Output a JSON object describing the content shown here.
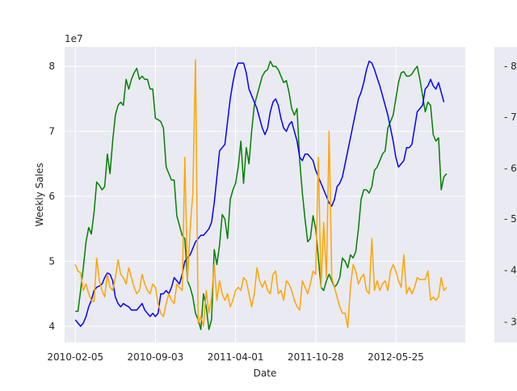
{
  "chart_data": {
    "type": "line",
    "title": "",
    "xlabel": "Date",
    "ylabel": "Weekly Sales",
    "offset_label": "1e7",
    "x_tick_labels": [
      "2010-02-05",
      "2010-09-03",
      "2011-04-01",
      "2011-10-28",
      "2012-05-25"
    ],
    "x_tick_weeks": [
      0,
      30,
      60,
      90,
      120
    ],
    "xlim_weeks": [
      -4,
      146
    ],
    "ylim": [
      3.75,
      8.3
    ],
    "y_ticks": [
      4,
      5,
      6,
      7,
      8
    ],
    "y_tick_labels": [
      "4",
      "5",
      "6",
      "7",
      "8"
    ],
    "twin_axis_tick_labels": [
      "- 8",
      "- 7",
      "- 6",
      "- 5",
      "- 4",
      "- 3"
    ],
    "twin_axis_tick_values": [
      8.0,
      7.22,
      6.43,
      5.65,
      4.86,
      4.07
    ],
    "grid": true,
    "legend": false,
    "x_step_weeks": 1,
    "series": [
      {
        "color": "#008000",
        "values": [
          4.23,
          4.23,
          4.55,
          4.9,
          5.3,
          5.52,
          5.42,
          5.75,
          6.22,
          6.17,
          6.1,
          6.15,
          6.65,
          6.35,
          6.85,
          7.25,
          7.4,
          7.45,
          7.4,
          7.8,
          7.65,
          7.8,
          7.9,
          7.97,
          7.8,
          7.85,
          7.8,
          7.8,
          7.65,
          7.65,
          7.2,
          7.18,
          7.15,
          7.05,
          6.45,
          6.35,
          6.25,
          6.25,
          5.7,
          5.55,
          5.4,
          5.35,
          4.7,
          4.6,
          4.45,
          4.2,
          4.1,
          3.95,
          4.5,
          4.3,
          3.95,
          4.1,
          5.18,
          4.95,
          5.25,
          5.72,
          5.65,
          5.35,
          5.95,
          6.1,
          6.2,
          6.45,
          6.85,
          6.2,
          6.75,
          6.5,
          7.0,
          7.4,
          7.55,
          7.7,
          7.85,
          7.92,
          7.95,
          8.08,
          8.0,
          8.0,
          7.95,
          7.85,
          7.75,
          7.78,
          7.6,
          7.35,
          7.25,
          7.35,
          6.55,
          6.05,
          5.65,
          5.3,
          5.35,
          5.7,
          5.5,
          5.05,
          4.6,
          4.55,
          4.7,
          4.8,
          4.7,
          4.6,
          4.65,
          4.75,
          5.05,
          5.0,
          4.9,
          5.1,
          5.05,
          5.15,
          5.5,
          5.95,
          6.1,
          6.1,
          6.05,
          6.15,
          6.4,
          6.45,
          6.55,
          6.65,
          6.7,
          7.05,
          7.15,
          7.25,
          7.5,
          7.75,
          7.9,
          7.92,
          7.85,
          7.85,
          7.88,
          7.95,
          8.0,
          7.8,
          7.55,
          7.3,
          7.45,
          7.4,
          6.95,
          6.85,
          6.9,
          6.1,
          6.3,
          6.35
        ],
        "x_start_week": 0
      },
      {
        "color": "#0000ff",
        "values": [
          4.1,
          4.05,
          4.0,
          4.05,
          4.15,
          4.3,
          4.4,
          4.55,
          4.6,
          4.62,
          4.65,
          4.75,
          4.82,
          4.8,
          4.7,
          4.45,
          4.35,
          4.3,
          4.35,
          4.32,
          4.3,
          4.25,
          4.25,
          4.25,
          4.3,
          4.35,
          4.25,
          4.2,
          4.15,
          4.2,
          4.15,
          4.2,
          4.5,
          4.5,
          4.55,
          4.5,
          4.6,
          4.75,
          4.7,
          4.65,
          4.8,
          5.0,
          5.05,
          5.1,
          5.2,
          5.3,
          5.35,
          5.4,
          5.4,
          5.45,
          5.5,
          5.6,
          5.9,
          6.3,
          6.7,
          6.75,
          6.8,
          7.15,
          7.5,
          7.75,
          7.95,
          8.05,
          8.05,
          8.05,
          7.9,
          7.65,
          7.55,
          7.45,
          7.35,
          7.2,
          7.05,
          6.95,
          7.05,
          7.3,
          7.45,
          7.5,
          7.4,
          7.2,
          7.05,
          7.0,
          7.1,
          7.15,
          7.0,
          6.85,
          6.6,
          6.55,
          6.65,
          6.65,
          6.6,
          6.55,
          6.4,
          6.3,
          6.2,
          6.1,
          6.0,
          5.9,
          5.85,
          5.95,
          6.15,
          6.2,
          6.3,
          6.5,
          6.7,
          6.9,
          7.1,
          7.3,
          7.5,
          7.6,
          7.75,
          7.95,
          8.08,
          8.05,
          7.95,
          7.82,
          7.7,
          7.55,
          7.4,
          7.25,
          7.05,
          6.85,
          6.6,
          6.45,
          6.5,
          6.55,
          6.75,
          6.75,
          6.8,
          7.05,
          7.3,
          7.35,
          7.4,
          7.65,
          7.7,
          7.8,
          7.7,
          7.65,
          7.75,
          7.6,
          7.45
        ],
        "x_start_week": 0
      },
      {
        "color": "#ffa500",
        "values": [
          4.95,
          4.85,
          4.82,
          4.55,
          4.65,
          4.5,
          4.4,
          4.38,
          5.05,
          4.7,
          4.55,
          4.45,
          4.8,
          4.6,
          4.55,
          4.75,
          5.02,
          4.8,
          4.75,
          4.65,
          4.9,
          4.75,
          4.6,
          4.5,
          4.55,
          4.8,
          4.65,
          4.55,
          4.5,
          4.65,
          4.6,
          4.35,
          4.2,
          4.15,
          4.35,
          4.5,
          4.4,
          4.35,
          4.65,
          4.6,
          4.55,
          6.6,
          4.7,
          5.5,
          6.05,
          8.1,
          4.05,
          4.15,
          4.0,
          4.55,
          4.2,
          4.45,
          4.95,
          4.4,
          4.7,
          4.5,
          4.4,
          4.5,
          4.3,
          4.4,
          4.55,
          4.6,
          4.55,
          4.75,
          4.7,
          4.5,
          4.3,
          4.5,
          4.9,
          4.7,
          4.6,
          4.7,
          4.55,
          4.5,
          4.8,
          4.85,
          4.5,
          4.55,
          4.4,
          4.7,
          4.65,
          4.55,
          4.4,
          4.3,
          4.25,
          4.7,
          4.6,
          4.5,
          4.65,
          4.85,
          4.8,
          6.6,
          4.6,
          5.6,
          4.75,
          7.0,
          4.75,
          4.6,
          4.45,
          4.3,
          4.2,
          4.2,
          3.98,
          4.6,
          4.95,
          4.85,
          4.65,
          4.75,
          4.8,
          4.55,
          4.5,
          5.35,
          4.55,
          4.7,
          4.55,
          4.65,
          4.7,
          4.55,
          4.85,
          4.95,
          4.85,
          4.7,
          4.6,
          5.1,
          4.5,
          4.6,
          4.5,
          4.6,
          4.75,
          4.72,
          4.72,
          4.72,
          4.85,
          4.4,
          4.45,
          4.4,
          4.45,
          4.75,
          4.55,
          4.6
        ],
        "x_start_week": 0
      }
    ]
  }
}
